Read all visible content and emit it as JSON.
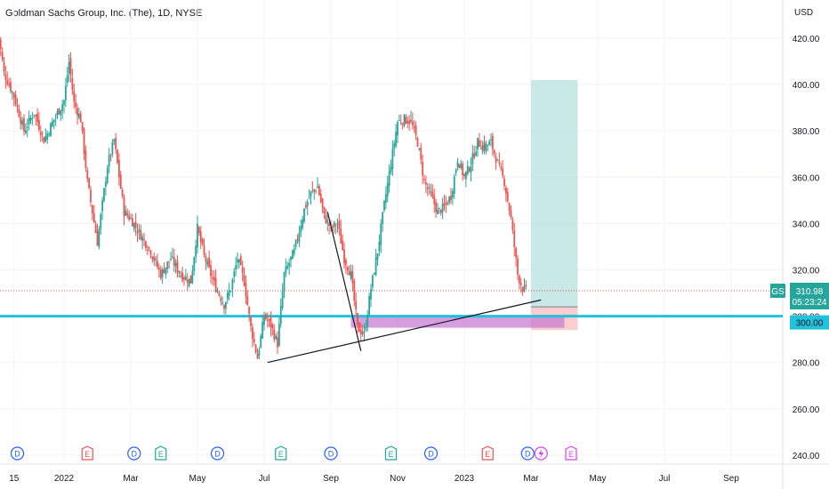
{
  "header": {
    "title": "Goldman Sachs Group, Inc. (The), 1D, NYSE",
    "currency": "USD"
  },
  "colors": {
    "up": "#26a69a",
    "down": "#ef5350",
    "support": "#22c1dc",
    "target": "#b2dfdb",
    "stop": "#f8b9b9",
    "zone": "#c77dd4"
  },
  "price_tag": {
    "symbol": "GS",
    "price": "310.98",
    "countdown": "05:23:24",
    "support_label": "300.00"
  },
  "chart_data": {
    "type": "candlestick",
    "y_ticks": [
      "240.00",
      "260.00",
      "280.00",
      "300.00",
      "320.00",
      "340.00",
      "360.00",
      "380.00",
      "400.00",
      "420.00"
    ],
    "ylim": [
      236,
      428
    ],
    "x_ticks": [
      {
        "label": "15",
        "month": 11.5
      },
      {
        "label": "2022",
        "month": 13
      },
      {
        "label": "Mar",
        "month": 15
      },
      {
        "label": "May",
        "month": 17
      },
      {
        "label": "Jul",
        "month": 19
      },
      {
        "label": "Sep",
        "month": 21
      },
      {
        "label": "Nov",
        "month": 23
      },
      {
        "label": "2023",
        "month": 25
      },
      {
        "label": "Mar",
        "month": 27
      },
      {
        "label": "May",
        "month": 29
      },
      {
        "label": "Jul",
        "month": 31
      },
      {
        "label": "Sep",
        "month": 33
      }
    ],
    "price_path": [
      [
        11.0,
        425
      ],
      [
        11.2,
        405
      ],
      [
        11.5,
        395
      ],
      [
        11.8,
        380
      ],
      [
        12.1,
        388
      ],
      [
        12.4,
        376
      ],
      [
        12.7,
        385
      ],
      [
        13.0,
        393
      ],
      [
        13.15,
        410
      ],
      [
        13.3,
        392
      ],
      [
        13.5,
        385
      ],
      [
        13.7,
        358
      ],
      [
        14.0,
        332
      ],
      [
        14.3,
        365
      ],
      [
        14.5,
        376
      ],
      [
        14.8,
        345
      ],
      [
        15.0,
        342
      ],
      [
        15.3,
        335
      ],
      [
        15.6,
        328
      ],
      [
        15.9,
        318
      ],
      [
        16.2,
        325
      ],
      [
        16.5,
        318
      ],
      [
        16.8,
        315
      ],
      [
        17.0,
        338
      ],
      [
        17.2,
        326
      ],
      [
        17.5,
        314
      ],
      [
        17.8,
        305
      ],
      [
        18.0,
        312
      ],
      [
        18.2,
        325
      ],
      [
        18.4,
        315
      ],
      [
        18.6,
        295
      ],
      [
        18.8,
        282
      ],
      [
        19.0,
        300
      ],
      [
        19.2,
        296
      ],
      [
        19.4,
        288
      ],
      [
        19.6,
        318
      ],
      [
        19.9,
        328
      ],
      [
        20.2,
        346
      ],
      [
        20.4,
        353
      ],
      [
        20.6,
        356
      ],
      [
        20.8,
        343
      ],
      [
        21.0,
        338
      ],
      [
        21.2,
        340
      ],
      [
        21.4,
        325
      ],
      [
        21.6,
        318
      ],
      [
        21.8,
        295
      ],
      [
        22.0,
        292
      ],
      [
        22.2,
        312
      ],
      [
        22.4,
        328
      ],
      [
        22.6,
        348
      ],
      [
        22.8,
        366
      ],
      [
        23.0,
        384
      ],
      [
        23.2,
        385
      ],
      [
        23.4,
        384
      ],
      [
        23.6,
        375
      ],
      [
        23.8,
        358
      ],
      [
        24.0,
        352
      ],
      [
        24.2,
        345
      ],
      [
        24.4,
        347
      ],
      [
        24.6,
        352
      ],
      [
        24.8,
        368
      ],
      [
        25.0,
        360
      ],
      [
        25.2,
        366
      ],
      [
        25.4,
        375
      ],
      [
        25.6,
        373
      ],
      [
        25.8,
        375
      ],
      [
        26.0,
        366
      ],
      [
        26.2,
        358
      ],
      [
        26.4,
        342
      ],
      [
        26.6,
        318
      ],
      [
        26.75,
        312
      ],
      [
        26.85,
        310.98
      ]
    ],
    "annotations": {
      "current_price": 310.98,
      "support_level": 300,
      "long_position": {
        "entry": 304,
        "target": 402,
        "stop": 294,
        "from_month": 27.0,
        "to_month": 28.4
      },
      "demand_zone": {
        "low": 295,
        "high": 300,
        "from_month": 21.6,
        "to_month": 28.0
      },
      "trendline": {
        "from": [
          19.1,
          280
        ],
        "to": [
          27.3,
          307
        ]
      },
      "drawn_leg": {
        "from": [
          20.9,
          345
        ],
        "to": [
          21.9,
          285
        ]
      }
    },
    "events": [
      {
        "type": "D",
        "month": 11.6,
        "color": "#2962ff"
      },
      {
        "type": "E",
        "month": 13.7,
        "color": "#ef5350"
      },
      {
        "type": "D",
        "month": 15.1,
        "color": "#2962ff"
      },
      {
        "type": "E",
        "month": 15.9,
        "color": "#26a69a"
      },
      {
        "type": "D",
        "month": 17.6,
        "color": "#2962ff"
      },
      {
        "type": "E",
        "month": 19.5,
        "color": "#26a69a"
      },
      {
        "type": "D",
        "month": 21.0,
        "color": "#2962ff"
      },
      {
        "type": "E",
        "month": 22.8,
        "color": "#26a69a"
      },
      {
        "type": "D",
        "month": 24.0,
        "color": "#2962ff"
      },
      {
        "type": "E",
        "month": 25.7,
        "color": "#ef5350"
      },
      {
        "type": "D",
        "month": 26.9,
        "color": "#2962ff"
      },
      {
        "type": "S",
        "month": 27.3,
        "color": "#e040fb"
      },
      {
        "type": "E",
        "month": 28.2,
        "color": "#e040fb"
      }
    ]
  }
}
